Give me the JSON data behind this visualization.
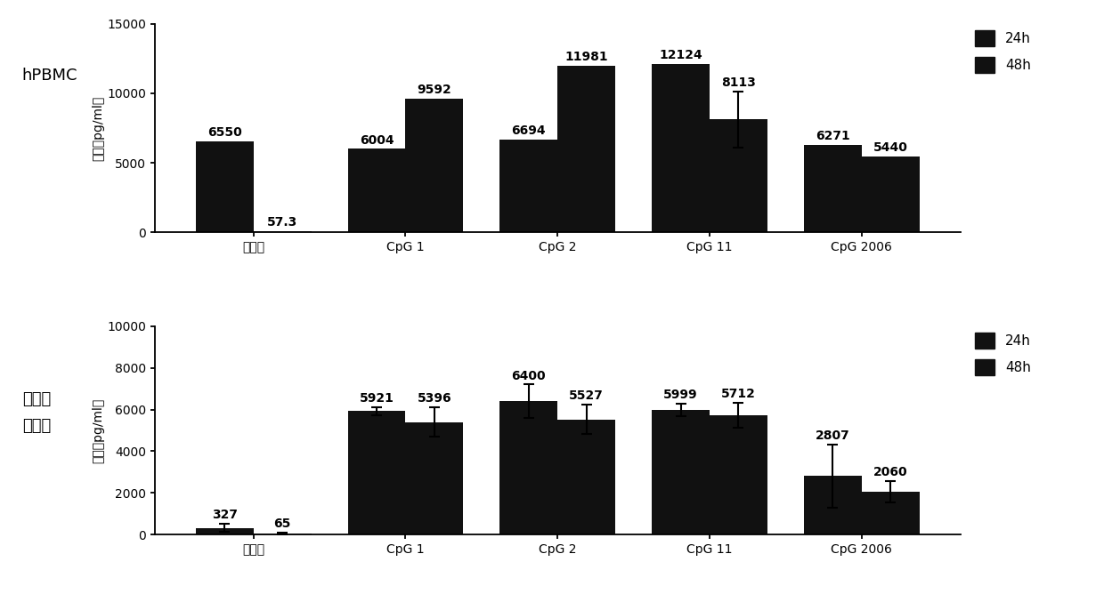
{
  "top_panel": {
    "label": "hPBMC",
    "ylabel": "浓度（pg/ml）",
    "ylim": [
      0,
      15000
    ],
    "yticks": [
      0,
      5000,
      10000,
      15000
    ],
    "categories": [
      "培养基",
      "CpG 1",
      "CpG 2",
      "CpG 11",
      "CpG 2006"
    ],
    "values_24h": [
      6550,
      6004,
      6694,
      12124,
      6271
    ],
    "values_48h": [
      57.3,
      9592,
      11981,
      8113,
      5440
    ],
    "errors_24h": [
      0,
      0,
      0,
      0,
      0
    ],
    "errors_48h": [
      0,
      0,
      0,
      2000,
      0
    ]
  },
  "bottom_panel": {
    "label": "小鼠脾脏细胞",
    "label_line1": "小鼠脾",
    "label_line2": "脏细胞",
    "ylabel": "浓度（pg/ml）",
    "ylim": [
      0,
      10000
    ],
    "yticks": [
      0,
      2000,
      4000,
      6000,
      8000,
      10000
    ],
    "categories": [
      "培养基",
      "CpG 1",
      "CpG 2",
      "CpG 11",
      "CpG 2006"
    ],
    "values_24h": [
      327,
      5921,
      6400,
      5999,
      2807
    ],
    "values_48h": [
      65,
      5396,
      5527,
      5712,
      2060
    ],
    "errors_24h": [
      200,
      200,
      800,
      300,
      1500
    ],
    "errors_48h": [
      50,
      700,
      700,
      600,
      500
    ]
  },
  "bar_width": 0.38,
  "color_24h": "#111111",
  "color_48h": "#111111",
  "fontsize_ylabel": 10,
  "fontsize_tick": 10,
  "fontsize_annot": 10,
  "fontsize_legend": 11,
  "fontsize_panel_label": 13,
  "background_color": "#ffffff"
}
